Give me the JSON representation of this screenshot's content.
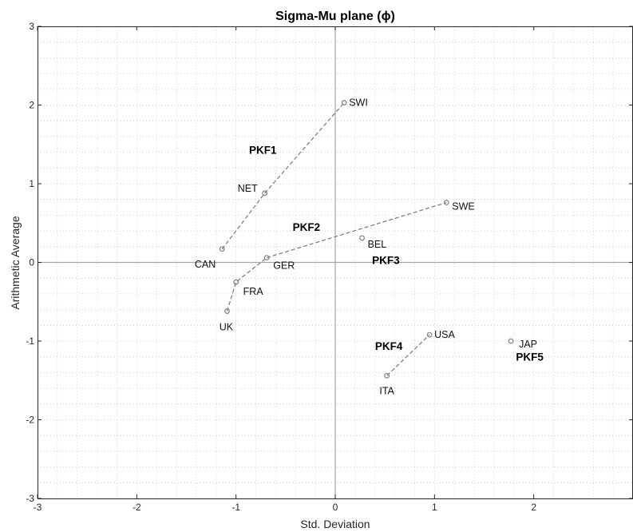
{
  "chart_data": {
    "type": "scatter",
    "title": "Sigma-Mu plane (ϕ)",
    "xlabel": "Std. Deviation",
    "ylabel": "Arithmetic Average",
    "xlim": [
      -3,
      3
    ],
    "ylim": [
      -3,
      3
    ],
    "xticks": [
      "-3",
      "-2",
      "-1",
      "0",
      "1",
      "2"
    ],
    "yticks": [
      "-3",
      "-2",
      "-1",
      "0",
      "1",
      "2",
      "3"
    ],
    "grid": "minor-dotted",
    "colors": {
      "marker": "#808080",
      "line": "#808080",
      "zero_axis": "#a6a6a6",
      "frame": "#262626"
    },
    "points": [
      {
        "name": "SWI",
        "x": 0.09,
        "y": 2.03
      },
      {
        "name": "NET",
        "x": -0.71,
        "y": 0.88
      },
      {
        "name": "CAN",
        "x": -1.14,
        "y": 0.17
      },
      {
        "name": "SWE",
        "x": 1.12,
        "y": 0.76
      },
      {
        "name": "BEL",
        "x": 0.27,
        "y": 0.31
      },
      {
        "name": "GER",
        "x": -0.69,
        "y": 0.06
      },
      {
        "name": "FRA",
        "x": -1.0,
        "y": -0.25
      },
      {
        "name": "UK",
        "x": -1.09,
        "y": -0.62
      },
      {
        "name": "USA",
        "x": 0.95,
        "y": -0.92
      },
      {
        "name": "ITA",
        "x": 0.52,
        "y": -1.44
      },
      {
        "name": "JAP",
        "x": 1.77,
        "y": -1.0
      }
    ],
    "lines": [
      {
        "x": [
          -1.14,
          -0.71,
          0.09
        ],
        "y": [
          0.17,
          0.88,
          2.03
        ]
      },
      {
        "x": [
          -0.69,
          1.12
        ],
        "y": [
          0.06,
          0.76
        ]
      },
      {
        "x": [
          -1.09,
          -1.0,
          -0.69
        ],
        "y": [
          -0.62,
          -0.25,
          0.06
        ]
      },
      {
        "x": [
          0.52,
          0.95
        ],
        "y": [
          -1.44,
          -0.92
        ]
      }
    ],
    "annotations": [
      {
        "text": "PKF1",
        "x": -0.73,
        "y": 1.43
      },
      {
        "text": "PKF2",
        "x": -0.29,
        "y": 0.45
      },
      {
        "text": "PKF3",
        "x": 0.51,
        "y": 0.03
      },
      {
        "text": "PKF4",
        "x": 0.54,
        "y": -1.06
      },
      {
        "text": "PKF5",
        "x": 1.96,
        "y": -1.2
      }
    ]
  }
}
